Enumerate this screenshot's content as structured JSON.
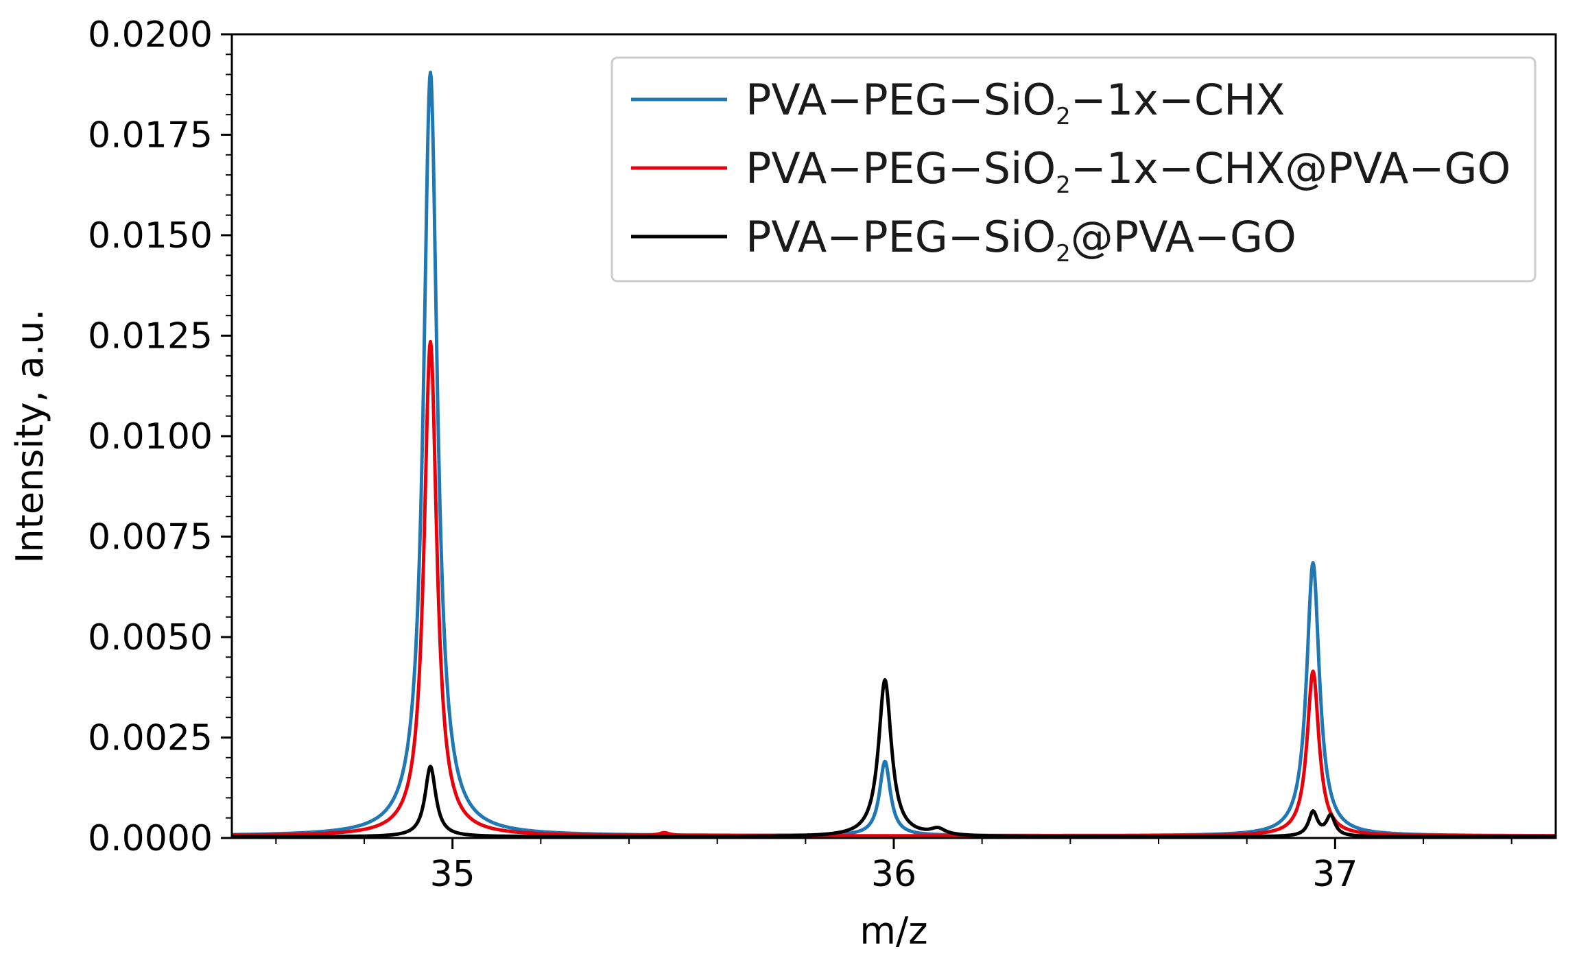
{
  "chart_data": {
    "type": "line",
    "title": "",
    "xlabel": "m/z",
    "ylabel": "Intensity, a.u.",
    "xlim": [
      34.5,
      37.5
    ],
    "ylim": [
      0,
      0.02
    ],
    "x_ticks": [
      35,
      36,
      37
    ],
    "x_tick_labels": [
      "35",
      "36",
      "37"
    ],
    "x_minor_step": 0.2,
    "y_ticks": [
      0,
      0.0025,
      0.005,
      0.0075,
      0.01,
      0.0125,
      0.015,
      0.0175,
      0.02
    ],
    "y_tick_labels": [
      "0.0000",
      "0.0025",
      "0.0050",
      "0.0075",
      "0.0100",
      "0.0125",
      "0.0150",
      "0.0175",
      "0.0200"
    ],
    "y_minor_step": 0.0005,
    "grid": false,
    "legend_position": "top-right",
    "series": [
      {
        "name": "PVA-PEG-SiO2-1x-CHX",
        "legend_label": {
          "prefix": "PVA−PEG−SiO",
          "sub": "2",
          "suffix": "−1x−CHX"
        },
        "color": "#1f77b4",
        "baseline": 5e-05,
        "peaks": [
          {
            "x": 34.95,
            "y": 0.019,
            "width": 0.028
          },
          {
            "x": 35.98,
            "y": 0.00185,
            "width": 0.022
          },
          {
            "x": 36.95,
            "y": 0.0068,
            "width": 0.026
          }
        ]
      },
      {
        "name": "PVA-PEG-SiO2-1x-CHX@PVA-GO",
        "legend_label": {
          "prefix": "PVA−PEG−SiO",
          "sub": "2",
          "suffix": "−1x−CHX@PVA−GO"
        },
        "color": "#e8000b",
        "baseline": 5e-05,
        "peaks": [
          {
            "x": 34.95,
            "y": 0.0123,
            "width": 0.026
          },
          {
            "x": 35.48,
            "y": 7e-05,
            "width": 0.02
          },
          {
            "x": 36.95,
            "y": 0.0041,
            "width": 0.024
          }
        ]
      },
      {
        "name": "PVA-PEG-SiO2@PVA-GO",
        "legend_label": {
          "prefix": "PVA−PEG−SiO",
          "sub": "2",
          "suffix": "@PVA−GO"
        },
        "color": "#000000",
        "baseline": 3e-05,
        "peaks": [
          {
            "x": 34.95,
            "y": 0.00175,
            "width": 0.022
          },
          {
            "x": 35.98,
            "y": 0.0039,
            "width": 0.026
          },
          {
            "x": 36.1,
            "y": 0.00015,
            "width": 0.03
          },
          {
            "x": 36.95,
            "y": 0.0006,
            "width": 0.018
          },
          {
            "x": 36.99,
            "y": 0.0005,
            "width": 0.018
          }
        ]
      }
    ]
  }
}
